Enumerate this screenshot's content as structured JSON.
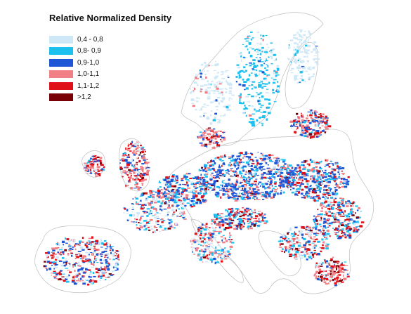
{
  "title": "Relative Normalized Density",
  "legend": [
    {
      "label": "0,4 - 0,8",
      "color": "#cfe8f7"
    },
    {
      "label": "0,8- 0,9",
      "color": "#1ec0ef"
    },
    {
      "label": "0,9-1,0",
      "color": "#1f56d6"
    },
    {
      "label": "1,0-1,1",
      "color": "#f07f86"
    },
    {
      "label": "1,1-1,2",
      "color": "#e01018"
    },
    {
      "label": ">1,2",
      "color": "#7a0008"
    }
  ],
  "colors": {
    "land_outline": "#bdbdbd",
    "background": "#ffffff"
  }
}
